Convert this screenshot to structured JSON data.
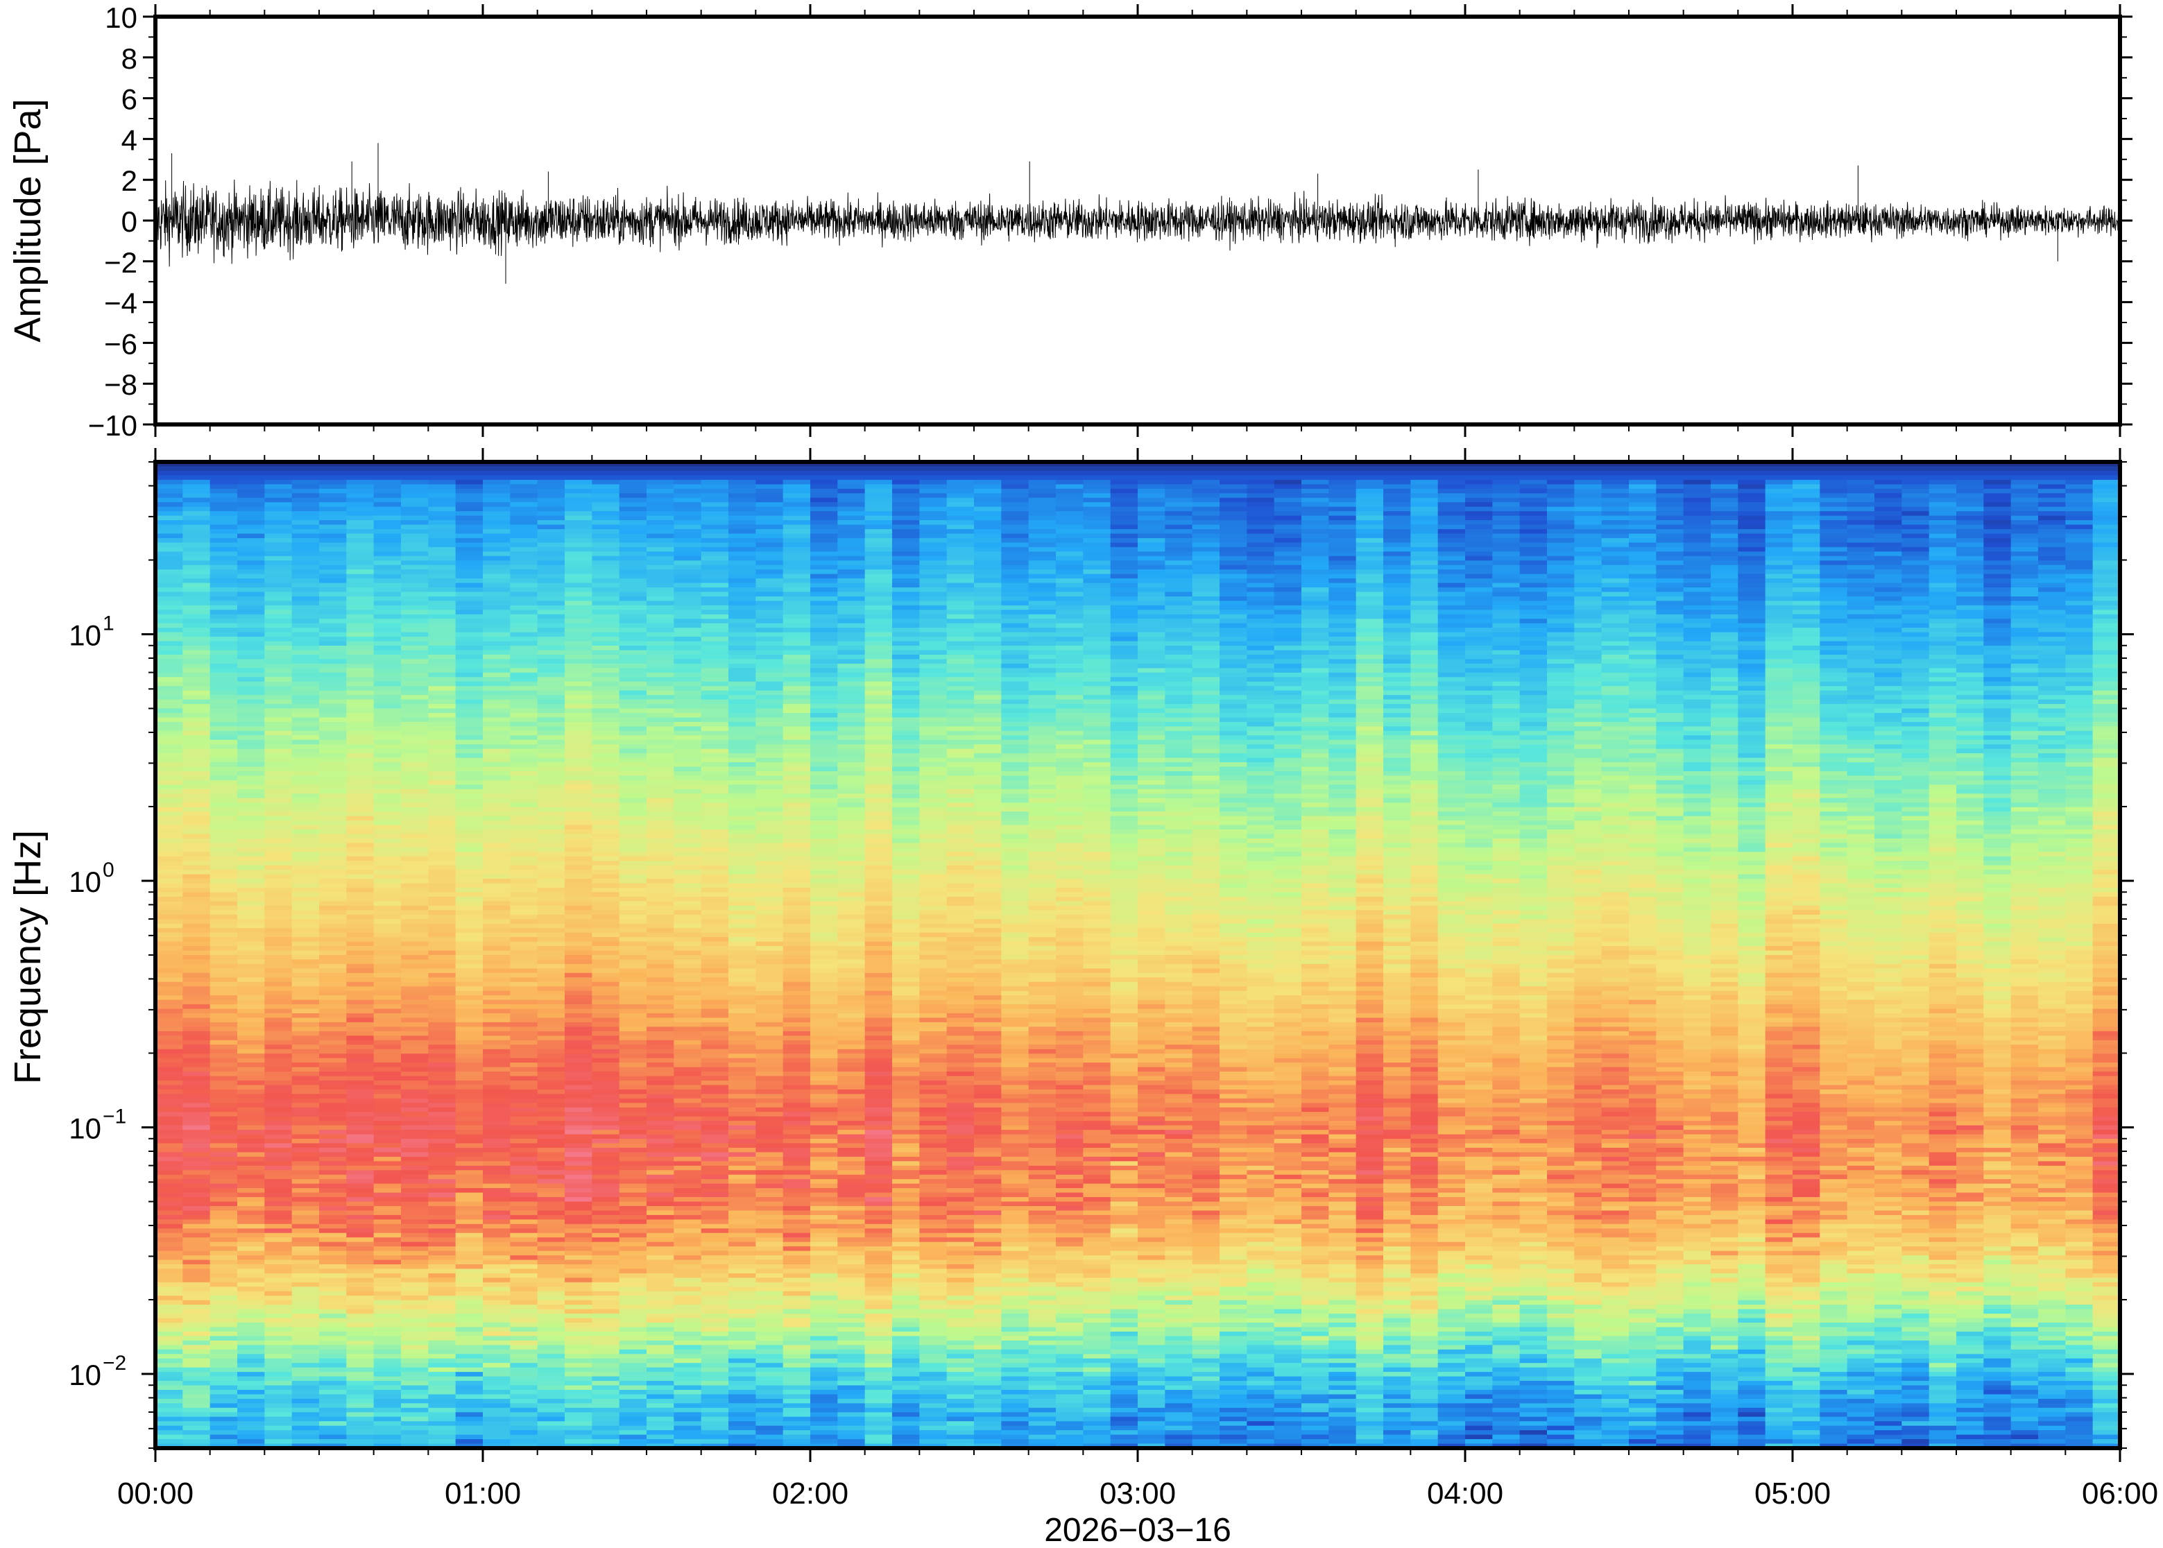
{
  "chart_data": [
    {
      "type": "line",
      "panel": "waveform",
      "ylabel": "Amplitude [Pa]",
      "ylim": [
        -10,
        10
      ],
      "yticks": [
        10,
        8,
        6,
        4,
        2,
        0,
        -2,
        -4,
        -6,
        -8,
        -10
      ],
      "ytick_labels": [
        "10",
        "8",
        "6",
        "4",
        "2",
        "0",
        "−2",
        "−4",
        "−6",
        "−8",
        "−10"
      ],
      "xlim_hours": [
        0,
        6
      ],
      "noise_envelope": {
        "hours": [
          0,
          0.5,
          1,
          1.5,
          2,
          2.5,
          3,
          3.5,
          4,
          4.5,
          5,
          5.5,
          6
        ],
        "amplitude_pa": [
          1.6,
          1.4,
          1.3,
          1.1,
          0.9,
          0.9,
          0.9,
          0.9,
          0.9,
          0.9,
          0.8,
          0.7,
          0.6
        ]
      },
      "spikes": [
        {
          "hour": 0.05,
          "value": 3.3
        },
        {
          "hour": 0.6,
          "value": 2.9
        },
        {
          "hour": 0.68,
          "value": 3.8
        },
        {
          "hour": 1.07,
          "value": -3.1
        },
        {
          "hour": 1.2,
          "value": 2.4
        },
        {
          "hour": 2.67,
          "value": 2.9
        },
        {
          "hour": 3.55,
          "value": 2.3
        },
        {
          "hour": 4.04,
          "value": 2.5
        },
        {
          "hour": 5.2,
          "value": 2.7
        },
        {
          "hour": 5.81,
          "value": -2.0
        }
      ]
    },
    {
      "type": "heatmap",
      "panel": "spectrogram",
      "ylabel": "Frequency [Hz]",
      "yscale": "log",
      "ylim_hz": [
        0.005,
        50
      ],
      "yticks_hz": [
        10,
        1,
        0.1,
        0.01
      ],
      "ytick_labels": [
        {
          "base": "10",
          "exp": "1"
        },
        {
          "base": "10",
          "exp": "0"
        },
        {
          "base": "10",
          "exp": "−1"
        },
        {
          "base": "10",
          "exp": "−2"
        }
      ],
      "xlim_hours": [
        0,
        6
      ],
      "xticks_hours": [
        0,
        1,
        2,
        3,
        4,
        5,
        6
      ],
      "xtick_labels": [
        "00:00",
        "01:00",
        "02:00",
        "03:00",
        "04:00",
        "05:00",
        "06:00"
      ],
      "xlabel": "2026−03−16",
      "colormap": [
        "#1e2a78",
        "#1f4fd0",
        "#23a9f7",
        "#58e6dc",
        "#bff98d",
        "#f5e37a",
        "#fbb55a",
        "#f2574f",
        "#f47a8c"
      ],
      "spectral_level_profile": {
        "frequency_hz": [
          0.005,
          0.008,
          0.012,
          0.02,
          0.03,
          0.05,
          0.1,
          0.2,
          0.4,
          1,
          2,
          5,
          10,
          20,
          40,
          45,
          50
        ],
        "level": [
          0.24,
          0.3,
          0.42,
          0.58,
          0.72,
          0.82,
          0.86,
          0.8,
          0.7,
          0.6,
          0.52,
          0.42,
          0.34,
          0.26,
          0.2,
          0.12,
          0.02
        ]
      },
      "time_trend": {
        "hours": [
          0,
          2,
          4,
          6
        ],
        "level_offset": [
          0.05,
          0.0,
          -0.03,
          -0.06
        ]
      }
    }
  ]
}
